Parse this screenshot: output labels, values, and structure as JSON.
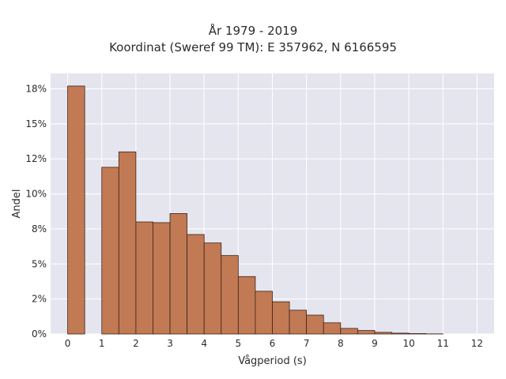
{
  "chart_data": {
    "type": "bar",
    "title_lines": [
      "År 1979 - 2019",
      "Koordinat (Sweref 99 TM): E 357962, N 6166595"
    ],
    "xlabel": "Vågperiod (s)",
    "ylabel": "Andel",
    "x_ticks": [
      "0",
      "1",
      "2",
      "3",
      "4",
      "5",
      "6",
      "7",
      "8",
      "9",
      "10",
      "11",
      "12"
    ],
    "y_ticks": [
      "0%",
      "2%",
      "5%",
      "8%",
      "10%",
      "12%",
      "15%",
      "18%"
    ],
    "y_tick_values": [
      0,
      2.5,
      5,
      7.5,
      10,
      12.5,
      15,
      17.5
    ],
    "xlim": [
      -0.5,
      12.5
    ],
    "ylim": [
      0,
      18.6
    ],
    "bin_width": 0.5,
    "bars": [
      {
        "x": 0.0,
        "y": 17.7
      },
      {
        "x": 1.0,
        "y": 11.9
      },
      {
        "x": 1.5,
        "y": 13.0
      },
      {
        "x": 2.0,
        "y": 8.0
      },
      {
        "x": 2.5,
        "y": 7.95
      },
      {
        "x": 3.0,
        "y": 8.6
      },
      {
        "x": 3.5,
        "y": 7.1
      },
      {
        "x": 4.0,
        "y": 6.5
      },
      {
        "x": 4.5,
        "y": 5.6
      },
      {
        "x": 5.0,
        "y": 4.1
      },
      {
        "x": 5.5,
        "y": 3.05
      },
      {
        "x": 6.0,
        "y": 2.3
      },
      {
        "x": 6.5,
        "y": 1.7
      },
      {
        "x": 7.0,
        "y": 1.35
      },
      {
        "x": 7.5,
        "y": 0.8
      },
      {
        "x": 8.0,
        "y": 0.4
      },
      {
        "x": 8.5,
        "y": 0.25
      },
      {
        "x": 9.0,
        "y": 0.12
      },
      {
        "x": 9.5,
        "y": 0.06
      },
      {
        "x": 10.0,
        "y": 0.03
      },
      {
        "x": 10.5,
        "y": 0.01
      }
    ],
    "bar_color": "#c17a54",
    "bar_edge_color": "#3d2418",
    "plot_background": "#e5e5ef",
    "grid": true,
    "grid_color": "#ffffff"
  }
}
